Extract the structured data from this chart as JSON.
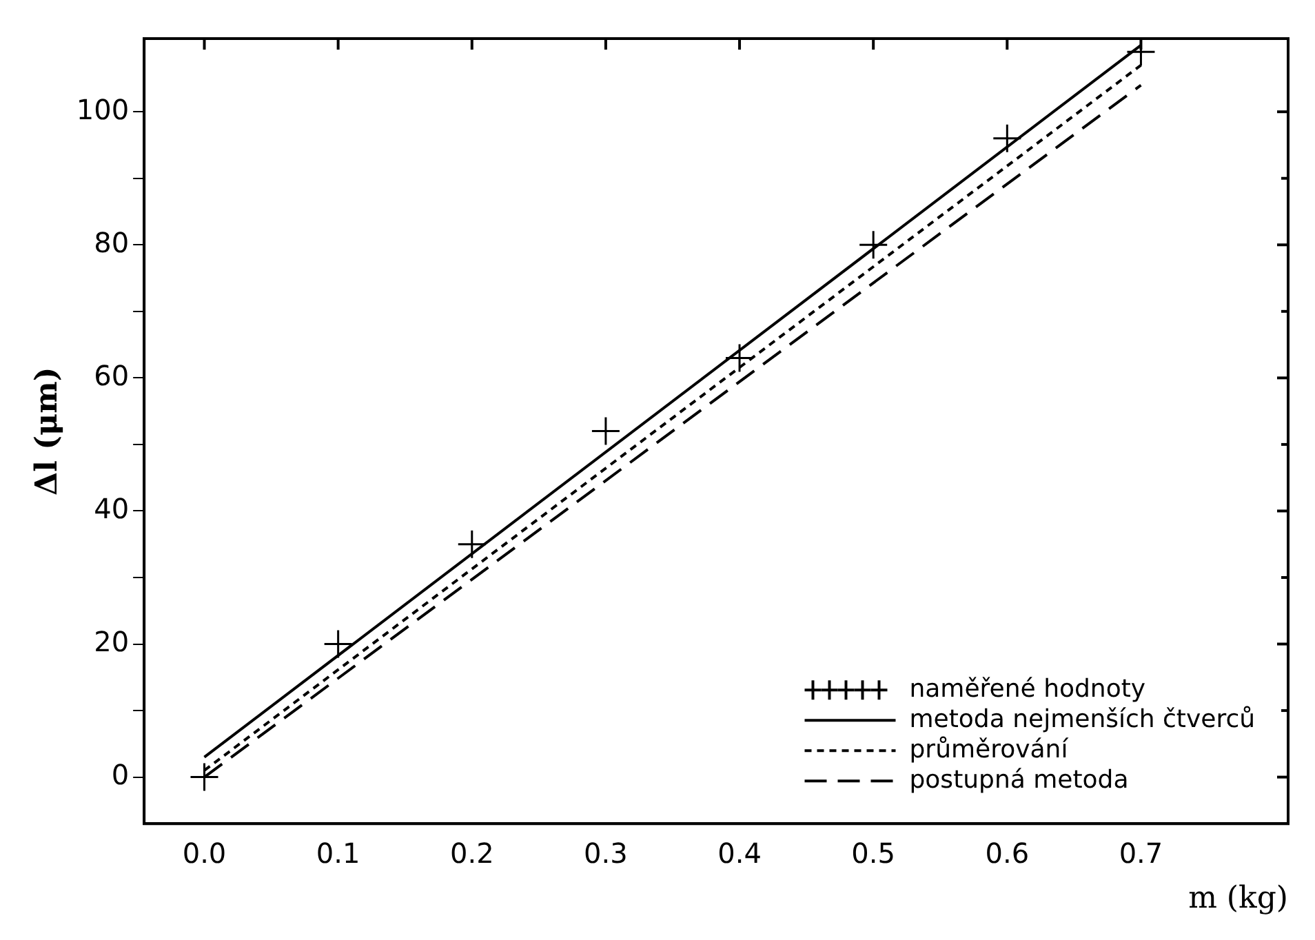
{
  "chart_data": {
    "type": "scatter",
    "xlabel": "m (kg)",
    "ylabel": "Δl (μm)",
    "xlim": [
      -0.045,
      0.81
    ],
    "ylim": [
      -7,
      111
    ],
    "xticks": [
      {
        "value": 0,
        "label": "0.0"
      },
      0.1,
      0.2,
      0.3,
      0.4,
      0.5,
      0.6,
      0.7
    ],
    "yticks": [
      0,
      {
        "value": 10,
        "label": null
      },
      20,
      {
        "value": 30,
        "label": null
      },
      40,
      {
        "value": 50,
        "label": null
      },
      60,
      {
        "value": 70,
        "label": null
      },
      80,
      {
        "value": 90,
        "label": null
      },
      100
    ],
    "grid": false,
    "legend": "bottom right",
    "series": [
      {
        "name": "naměřené hodnoty",
        "type": "scatter",
        "marker": "cross",
        "color": "#000000",
        "x": [
          0,
          0.1,
          0.2,
          0.3,
          0.4,
          0.5,
          0.6,
          0.7
        ],
        "values": [
          0,
          20,
          35,
          52,
          63,
          80,
          96,
          109
        ]
      },
      {
        "name": "metoda nejmenších čtverců",
        "type": "line",
        "marker": "none",
        "line_style": "solid",
        "color": "#000000",
        "x": [
          0,
          0.7
        ],
        "values": [
          3,
          110
        ]
      },
      {
        "name": "průměrování",
        "type": "line",
        "marker": "none",
        "line_style": "dotted",
        "color": "#000000",
        "x": [
          0,
          0.7
        ],
        "values": [
          1,
          107
        ]
      },
      {
        "name": "postupná metoda",
        "type": "line",
        "marker": "none",
        "line_style": "dashed",
        "color": "#000000",
        "x": [
          0,
          0.7
        ],
        "values": [
          0,
          104
        ]
      }
    ]
  }
}
